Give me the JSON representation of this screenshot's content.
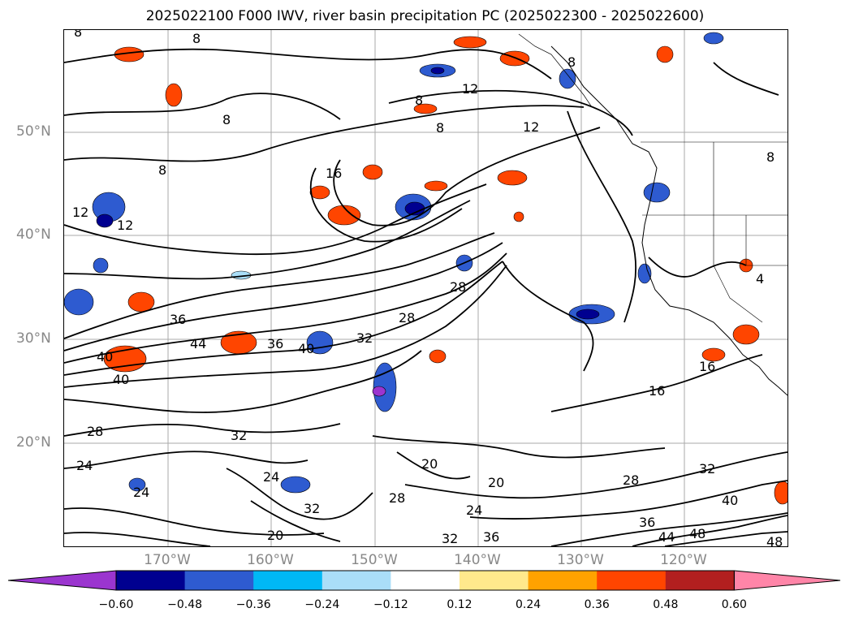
{
  "title": "2025022100 F000 IWV, river basin precipitation PC (2025022300 - 2025022600)",
  "lat_labels": [
    "50°N",
    "40°N",
    "30°N",
    "20°N"
  ],
  "lon_labels": [
    "170°W",
    "160°W",
    "150°W",
    "140°W",
    "130°W",
    "120°W"
  ],
  "colorbar": {
    "colors": [
      "#9b35cf",
      "#000090",
      "#2e5bd0",
      "#00b8f5",
      "#aadef8",
      "#ffffff",
      "#ffe98c",
      "#ffa200",
      "#ff4500",
      "#b21f1f",
      "#ff85a8"
    ],
    "ticks": [
      "−0.60",
      "−0.48",
      "−0.36",
      "−0.24",
      "−0.12",
      "0.12",
      "0.24",
      "0.36",
      "0.48",
      "0.60"
    ]
  },
  "contour_labels": [
    "8",
    "8",
    "12",
    "12",
    "8",
    "8",
    "8",
    "16",
    "12",
    "12",
    "8",
    "8",
    "8",
    "4",
    "36",
    "40",
    "44",
    "36",
    "40",
    "32",
    "28",
    "28",
    "40",
    "28",
    "32",
    "24",
    "24",
    "24",
    "32",
    "20",
    "32",
    "36",
    "24",
    "28",
    "20",
    "20",
    "16",
    "16",
    "28",
    "32",
    "36",
    "44",
    "48",
    "40",
    "48"
  ]
}
